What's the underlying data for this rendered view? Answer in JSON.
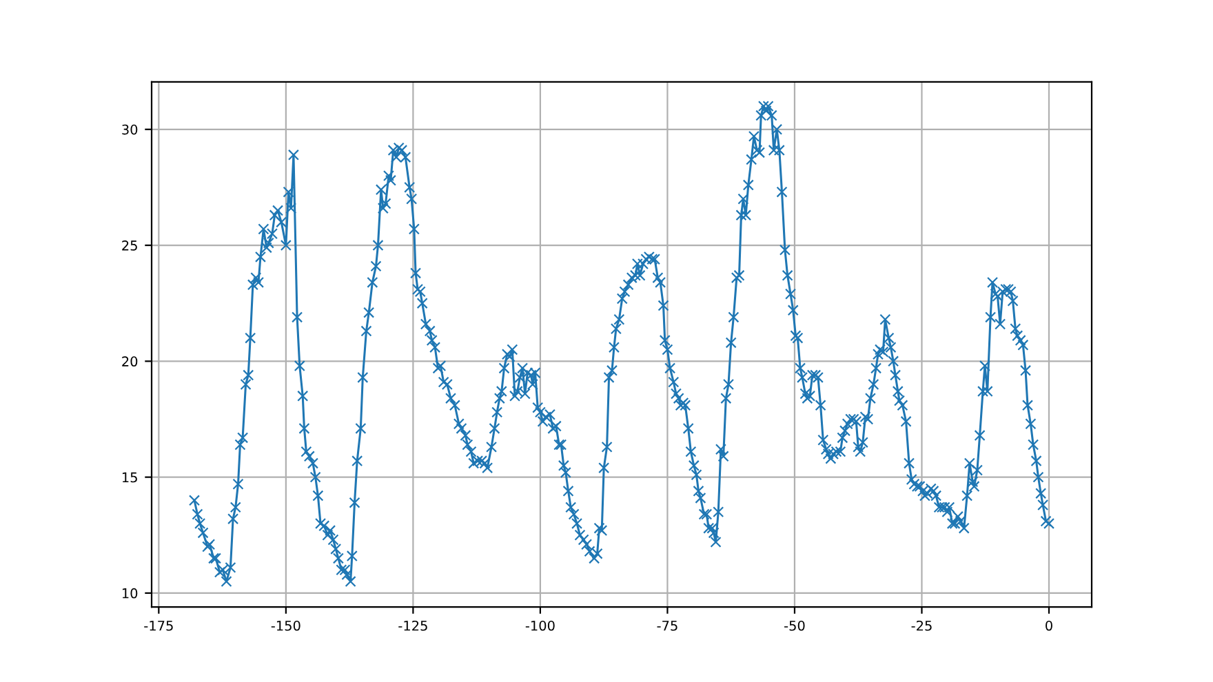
{
  "chart_data": {
    "type": "line",
    "marker": "cross",
    "line_style": "solid",
    "grid": true,
    "xlim": [
      -176.4,
      8.4
    ],
    "ylim": [
      9.4,
      32.05
    ],
    "xticks": [
      -175,
      -150,
      -125,
      -100,
      -75,
      -50,
      -25,
      0
    ],
    "yticks": [
      10,
      15,
      20,
      25,
      30
    ],
    "series": [
      {
        "color": "#1f77b4",
        "x": [
          -168.0,
          -167.4,
          -166.9,
          -166.3,
          -165.4,
          -165.0,
          -164.2,
          -163.8,
          -163.0,
          -162.4,
          -161.7,
          -160.9,
          -160.4,
          -159.9,
          -159.4,
          -159.0,
          -158.5,
          -157.9,
          -157.4,
          -157.0,
          -156.5,
          -155.9,
          -155.4,
          -155.0,
          -154.4,
          -153.8,
          -153.4,
          -152.7,
          -152.2,
          -151.6,
          -150.9,
          -150.0,
          -149.5,
          -149.0,
          -148.5,
          -147.8,
          -147.3,
          -146.7,
          -146.4,
          -146.0,
          -145.4,
          -144.7,
          -144.2,
          -143.7,
          -143.2,
          -142.5,
          -141.8,
          -141.3,
          -140.7,
          -140.2,
          -139.7,
          -139.1,
          -138.4,
          -138.0,
          -137.3,
          -137.0,
          -136.5,
          -136.0,
          -135.3,
          -134.9,
          -134.2,
          -133.7,
          -133.0,
          -132.3,
          -131.9,
          -131.3,
          -130.9,
          -130.4,
          -129.8,
          -129.4,
          -128.9,
          -128.3,
          -127.8,
          -127.2,
          -126.5,
          -125.7,
          -125.3,
          -124.8,
          -124.5,
          -124.1,
          -123.6,
          -123.2,
          -122.5,
          -121.7,
          -121.3,
          -120.7,
          -120.1,
          -119.6,
          -119.0,
          -118.3,
          -117.6,
          -116.8,
          -116.0,
          -115.5,
          -114.7,
          -114.3,
          -113.6,
          -113.1,
          -112.3,
          -111.5,
          -110.9,
          -110.4,
          -109.6,
          -109.0,
          -108.5,
          -108.0,
          -107.6,
          -107.1,
          -106.5,
          -106.0,
          -105.5,
          -105.0,
          -104.5,
          -104.0,
          -103.5,
          -103.0,
          -102.5,
          -101.8,
          -101.5,
          -101.0,
          -100.5,
          -100.0,
          -99.5,
          -98.9,
          -98.1,
          -97.5,
          -96.9,
          -96.3,
          -95.9,
          -95.4,
          -95.0,
          -94.5,
          -94.0,
          -93.4,
          -92.8,
          -92.2,
          -91.5,
          -90.9,
          -90.3,
          -89.4,
          -88.8,
          -88.4,
          -87.9,
          -87.5,
          -86.9,
          -86.5,
          -85.9,
          -85.5,
          -85.1,
          -84.5,
          -83.9,
          -83.4,
          -82.7,
          -82.0,
          -81.3,
          -80.9,
          -80.4,
          -79.8,
          -79.2,
          -78.6,
          -78.0,
          -77.5,
          -76.9,
          -76.4,
          -75.8,
          -75.5,
          -75.0,
          -74.5,
          -73.8,
          -73.3,
          -72.8,
          -72.4,
          -71.9,
          -71.5,
          -70.9,
          -70.4,
          -69.8,
          -69.3,
          -68.9,
          -68.5,
          -67.8,
          -67.3,
          -66.9,
          -66.2,
          -65.9,
          -65.5,
          -65.0,
          -64.5,
          -64.0,
          -63.5,
          -63.0,
          -62.5,
          -62.0,
          -61.4,
          -60.9,
          -60.5,
          -60.1,
          -59.6,
          -59.1,
          -58.5,
          -58.0,
          -57.4,
          -56.9,
          -56.6,
          -56.1,
          -55.6,
          -55.2,
          -54.5,
          -54.1,
          -53.5,
          -53.0,
          -52.5,
          -51.9,
          -51.4,
          -50.8,
          -50.3,
          -49.8,
          -49.4,
          -48.9,
          -48.5,
          -47.9,
          -47.5,
          -47.0,
          -46.5,
          -45.9,
          -45.4,
          -44.9,
          -44.4,
          -43.8,
          -43.4,
          -42.9,
          -42.4,
          -41.8,
          -41.0,
          -40.6,
          -40.1,
          -39.6,
          -39.0,
          -38.4,
          -37.9,
          -37.5,
          -37.1,
          -36.6,
          -36.1,
          -35.6,
          -35.1,
          -34.5,
          -34.0,
          -33.6,
          -33.2,
          -32.6,
          -32.2,
          -31.5,
          -31.1,
          -30.6,
          -30.2,
          -29.7,
          -29.4,
          -28.8,
          -28.1,
          -27.5,
          -27.0,
          -26.5,
          -25.9,
          -25.4,
          -24.8,
          -24.4,
          -23.9,
          -23.2,
          -22.7,
          -22.2,
          -21.6,
          -21.0,
          -20.5,
          -20.0,
          -19.6,
          -19.0,
          -18.5,
          -17.9,
          -17.4,
          -16.7,
          -16.1,
          -15.6,
          -15.0,
          -14.7,
          -14.1,
          -13.6,
          -13.0,
          -12.6,
          -12.1,
          -11.5,
          -11.1,
          -10.5,
          -10.1,
          -9.6,
          -9.1,
          -8.5,
          -8.0,
          -7.5,
          -7.1,
          -6.6,
          -6.2,
          -5.6,
          -5.1,
          -4.6,
          -4.2,
          -3.6,
          -3.1,
          -2.5,
          -2.1,
          -1.6,
          -1.2,
          -0.6,
          0.0
        ],
        "values": [
          14.0,
          13.4,
          13.0,
          12.6,
          12.0,
          12.1,
          11.5,
          11.5,
          10.9,
          11.0,
          10.5,
          11.1,
          13.2,
          13.7,
          14.7,
          16.4,
          16.7,
          19.0,
          19.4,
          21.0,
          23.3,
          23.6,
          23.4,
          24.5,
          25.7,
          24.9,
          25.1,
          25.5,
          26.3,
          26.5,
          26.0,
          25.0,
          27.3,
          26.6,
          28.9,
          21.9,
          19.8,
          18.5,
          17.1,
          16.1,
          15.9,
          15.6,
          15.0,
          14.2,
          13.0,
          12.9,
          12.5,
          12.7,
          12.3,
          11.9,
          11.5,
          11.0,
          11.0,
          10.8,
          10.5,
          11.6,
          13.9,
          15.7,
          17.1,
          19.3,
          21.3,
          22.1,
          23.4,
          24.1,
          25.0,
          27.4,
          26.6,
          26.8,
          28.0,
          27.8,
          29.1,
          28.8,
          29.2,
          29.1,
          28.8,
          27.5,
          27.0,
          25.7,
          23.8,
          23.1,
          23.0,
          22.5,
          21.6,
          21.3,
          20.9,
          20.6,
          19.7,
          19.8,
          19.1,
          19.0,
          18.4,
          18.1,
          17.3,
          17.1,
          16.8,
          16.4,
          16.1,
          15.6,
          15.7,
          15.7,
          15.6,
          15.4,
          16.3,
          17.1,
          17.8,
          18.4,
          18.7,
          19.7,
          20.3,
          20.2,
          20.5,
          18.5,
          18.7,
          19.3,
          19.7,
          18.6,
          19.5,
          19.4,
          19.0,
          19.5,
          18.0,
          17.8,
          17.4,
          17.6,
          17.7,
          17.1,
          17.2,
          16.4,
          16.4,
          15.5,
          15.2,
          14.4,
          13.7,
          13.4,
          13.0,
          12.5,
          12.3,
          12.1,
          11.8,
          11.5,
          11.7,
          12.8,
          12.7,
          15.4,
          16.3,
          19.3,
          19.6,
          20.6,
          21.4,
          21.8,
          22.7,
          23.0,
          23.3,
          23.6,
          23.7,
          24.2,
          23.7,
          24.2,
          24.4,
          24.5,
          24.4,
          24.4,
          23.6,
          23.4,
          22.4,
          20.9,
          20.5,
          19.7,
          19.1,
          18.6,
          18.4,
          18.1,
          18.2,
          18.1,
          17.1,
          16.1,
          15.5,
          15.1,
          14.4,
          14.1,
          13.4,
          13.4,
          12.8,
          12.8,
          12.6,
          12.2,
          13.5,
          16.2,
          15.9,
          18.4,
          19.0,
          20.8,
          21.9,
          23.6,
          23.7,
          26.3,
          27.0,
          26.3,
          27.6,
          28.7,
          29.7,
          29.1,
          29.0,
          30.6,
          31.0,
          30.8,
          31.0,
          30.6,
          29.1,
          30.0,
          29.1,
          27.3,
          24.8,
          23.7,
          22.9,
          22.2,
          21.1,
          21.0,
          19.7,
          19.3,
          18.6,
          18.4,
          18.5,
          19.4,
          19.4,
          19.3,
          18.1,
          16.6,
          16.2,
          16.0,
          15.8,
          16.0,
          16.1,
          16.1,
          16.7,
          17.0,
          17.3,
          17.5,
          17.5,
          17.4,
          16.3,
          16.1,
          16.5,
          17.6,
          17.5,
          18.4,
          19.0,
          19.7,
          20.3,
          20.5,
          20.4,
          21.8,
          21.0,
          20.6,
          20.0,
          19.4,
          18.7,
          18.3,
          18.1,
          17.4,
          15.6,
          14.9,
          14.7,
          14.6,
          14.6,
          14.4,
          14.2,
          14.3,
          14.5,
          14.4,
          14.2,
          13.7,
          13.7,
          13.7,
          13.5,
          13.7,
          13.0,
          13.0,
          13.3,
          13.1,
          12.8,
          14.2,
          15.6,
          14.8,
          14.6,
          15.3,
          16.8,
          18.7,
          19.8,
          18.7,
          21.9,
          23.4,
          22.9,
          22.8,
          21.6,
          23.0,
          23.1,
          23.1,
          23.0,
          22.6,
          21.4,
          21.1,
          20.9,
          20.7,
          19.6,
          18.1,
          17.3,
          16.4,
          15.7,
          15.0,
          14.3,
          13.8,
          13.1,
          13.0
        ]
      }
    ]
  }
}
